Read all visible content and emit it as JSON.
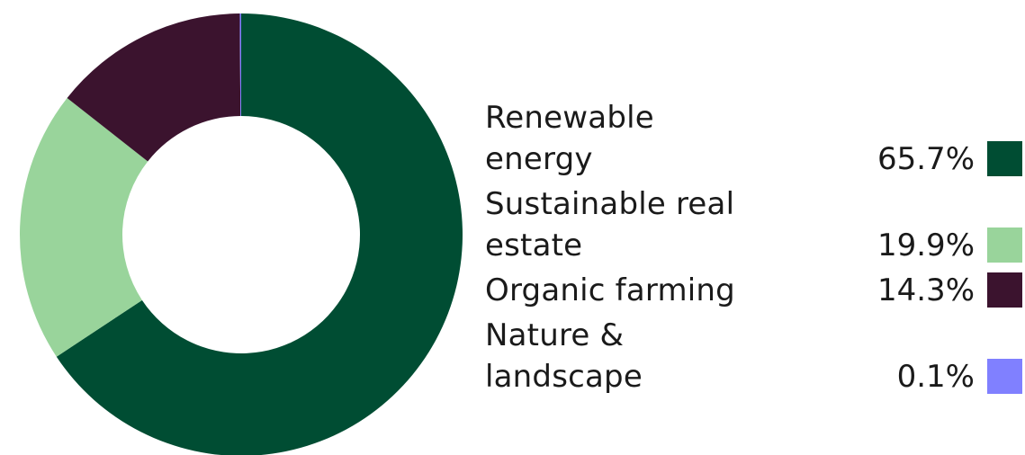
{
  "chart_data": {
    "type": "pie",
    "donut": true,
    "categories": [
      "Renewable energy",
      "Sustainable real estate",
      "Organic farming",
      "Nature & landscape"
    ],
    "values": [
      65.7,
      19.9,
      14.3,
      0.1
    ],
    "value_labels": [
      "65.7%",
      "19.9%",
      "14.3%",
      "0.1%"
    ],
    "colors": [
      "#004d33",
      "#99d49b",
      "#3b132e",
      "#8080ff"
    ],
    "legend_position": "right",
    "label_lines": [
      [
        "Renewable",
        "energy"
      ],
      [
        "Sustainable real",
        "estate"
      ],
      [
        "Organic farming"
      ],
      [
        "Nature &",
        "landscape"
      ]
    ]
  }
}
